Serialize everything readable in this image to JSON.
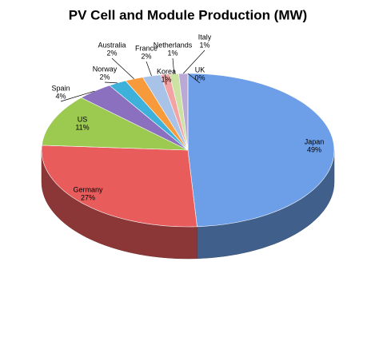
{
  "chart_data": {
    "type": "pie",
    "title": "PV Cell and Module Production (MW)",
    "categories": [
      "Japan",
      "Germany",
      "US",
      "Spain",
      "Norway",
      "Australia",
      "France",
      "Korea",
      "Netherlands",
      "Italy",
      "UK"
    ],
    "values": [
      49,
      27,
      11,
      4,
      2,
      2,
      2,
      1,
      1,
      1,
      0
    ],
    "value_labels": [
      "49%",
      "27%",
      "11%",
      "4%",
      "2%",
      "2%",
      "2%",
      "1%",
      "1%",
      "1%",
      "0%"
    ],
    "colors": [
      "#6d9ee8",
      "#e85c5c",
      "#9cc94f",
      "#8c70c0",
      "#3db1da",
      "#f79a3b",
      "#a9c2e8",
      "#f3a3a3",
      "#cbe2a3",
      "#baa9d6",
      "#92d3e8"
    ]
  }
}
